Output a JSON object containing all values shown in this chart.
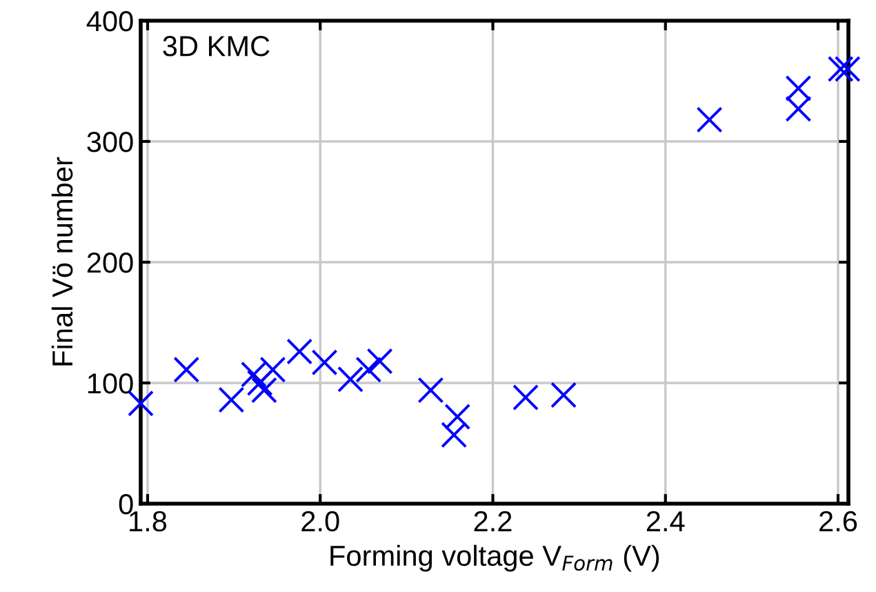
{
  "chart_data": {
    "type": "scatter",
    "xlabel": "Forming voltage V$_{Form}$ (V)",
    "ylabel": "Final Vö number",
    "annotations": [
      "3D KMC"
    ],
    "series": [
      {
        "color": "#0000ff",
        "x": [
          1.792,
          1.845,
          1.897,
          1.923,
          1.93,
          1.935,
          1.945,
          1.976,
          2.005,
          2.035,
          2.056,
          2.069,
          2.128,
          2.159,
          2.155,
          2.238,
          2.282,
          2.451,
          2.554,
          2.554,
          2.603,
          2.611
        ],
        "values": [
          83,
          111,
          86,
          107,
          100,
          94,
          111,
          126,
          117,
          103,
          111,
          118,
          94,
          72,
          57,
          88,
          90,
          318,
          344,
          327,
          360,
          360
        ]
      }
    ],
    "xlim": [
      1.792,
      2.612
    ],
    "ylim": [
      0,
      400
    ],
    "xticks": [
      {
        "value": 1.8,
        "label": "1.8"
      },
      {
        "value": 2.0,
        "label": "2.0"
      },
      {
        "value": 2.2,
        "label": "2.2"
      },
      {
        "value": 2.4,
        "label": "2.4"
      },
      {
        "value": 2.6,
        "label": "2.6"
      }
    ],
    "yticks": [
      0,
      100,
      200,
      300,
      400
    ],
    "grid": true,
    "marker": "cross"
  }
}
